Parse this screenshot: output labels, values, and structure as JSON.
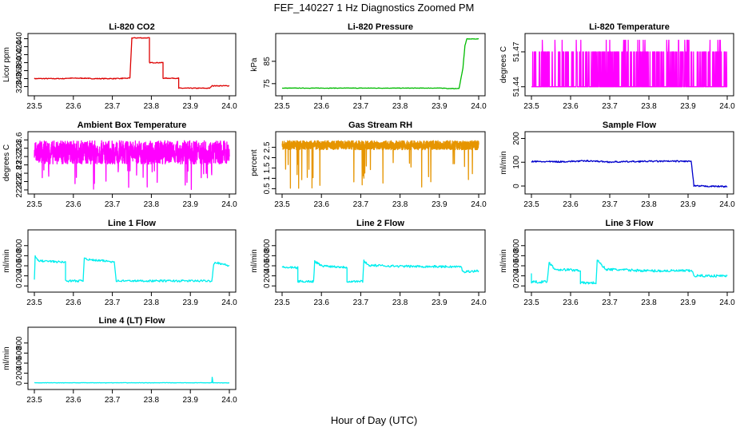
{
  "figure": {
    "title": "FEF_140227  1 Hz Diagnostics Zoomed PM",
    "xlabel": "Hour of Day (UTC)"
  },
  "chart_data": [
    {
      "type": "line",
      "title": "Li-820 CO2",
      "ylabel": "Licor ppm",
      "color": "#dd0000",
      "xlim": [
        23.5,
        24.0
      ],
      "ylim": [
        305,
        445
      ],
      "xticks": [
        "23.5",
        "23.6",
        "23.7",
        "23.8",
        "23.9",
        "24.0"
      ],
      "yticks": [
        320,
        340,
        360,
        380,
        400,
        420,
        440
      ],
      "segments": [
        [
          23.5,
          340
        ],
        [
          23.58,
          340
        ],
        [
          23.58,
          341
        ],
        [
          23.64,
          341
        ],
        [
          23.64,
          340
        ],
        [
          23.725,
          340
        ],
        [
          23.725,
          341
        ],
        [
          23.745,
          341
        ],
        [
          23.75,
          442
        ],
        [
          23.795,
          442
        ],
        [
          23.795,
          380
        ],
        [
          23.83,
          380
        ],
        [
          23.83,
          341
        ],
        [
          23.87,
          341
        ],
        [
          23.87,
          316
        ],
        [
          23.95,
          316
        ],
        [
          23.955,
          322
        ],
        [
          23.96,
          322
        ],
        [
          23.96,
          322
        ],
        [
          24.0,
          322
        ]
      ],
      "noise": 1
    },
    {
      "type": "line",
      "title": "Li-820 Pressure",
      "ylabel": "kPa",
      "color": "#00bb00",
      "xlim": [
        23.5,
        24.0
      ],
      "ylim": [
        71,
        96
      ],
      "xticks": [
        "23.5",
        "23.6",
        "23.7",
        "23.8",
        "23.9",
        "24.0"
      ],
      "yticks": [
        75,
        85
      ],
      "segments": [
        [
          23.5,
          73
        ],
        [
          23.915,
          73
        ],
        [
          23.92,
          72.8
        ],
        [
          23.95,
          72.8
        ],
        [
          23.96,
          82
        ],
        [
          23.965,
          92
        ],
        [
          23.97,
          95
        ],
        [
          24.0,
          95
        ]
      ],
      "noise": 0.1
    },
    {
      "type": "spikes",
      "title": "Li-820 Temperature",
      "ylabel": "degrees C",
      "color": "#ff00ff",
      "xlim": [
        23.5,
        24.0
      ],
      "ylim": [
        51.435,
        51.483
      ],
      "xticks": [
        "23.5",
        "23.6",
        "23.7",
        "23.8",
        "23.9",
        "24.0"
      ],
      "yticks": [
        51.44,
        51.47
      ],
      "levels": [
        51.44,
        51.47,
        51.48
      ]
    },
    {
      "type": "noisy",
      "title": "Ambient Box Temperature",
      "ylabel": "degrees C",
      "color": "#ff00ff",
      "xlim": [
        23.5,
        24.0
      ],
      "ylim": [
        22.38,
        23.72
      ],
      "xticks": [
        "23.5",
        "23.6",
        "23.7",
        "23.8",
        "23.9",
        "24.0"
      ],
      "yticks": [
        22.4,
        22.6,
        22.8,
        23.0,
        23.2,
        23.4,
        23.6
      ],
      "center": 23.3,
      "spread": 0.28,
      "low_spikes": 22.4
    },
    {
      "type": "noisy",
      "title": "Gas Stream RH",
      "ylabel": "percent",
      "color": "#e69500",
      "xlim": [
        23.5,
        24.0
      ],
      "ylim": [
        0.4,
        3.1
      ],
      "xticks": [
        "23.5",
        "23.6",
        "23.7",
        "23.8",
        "23.9",
        "24.0"
      ],
      "yticks": [
        0.5,
        1.0,
        1.5,
        2.0,
        2.5
      ],
      "center": 2.6,
      "spread": 0.22,
      "low_spikes": 0.5
    },
    {
      "type": "line",
      "title": "Sample Flow",
      "ylabel": "ml/min",
      "color": "#0000cc",
      "xlim": [
        23.5,
        24.0
      ],
      "ylim": [
        -20,
        215
      ],
      "xticks": [
        "23.5",
        "23.6",
        "23.7",
        "23.8",
        "23.9",
        "24.0"
      ],
      "yticks": [
        0,
        100,
        200
      ],
      "segments": [
        [
          23.5,
          103
        ],
        [
          23.57,
          102
        ],
        [
          23.65,
          106
        ],
        [
          23.7,
          101
        ],
        [
          23.8,
          104
        ],
        [
          23.908,
          104
        ],
        [
          23.915,
          0
        ],
        [
          24.0,
          -2
        ]
      ],
      "noise": 3
    },
    {
      "type": "line",
      "title": "Line 1 Flow",
      "ylabel": "ml/min",
      "color": "#00eeee",
      "xlim": [
        23.5,
        24.0
      ],
      "ylim": [
        -60,
        1050
      ],
      "xticks": [
        "23.5",
        "23.6",
        "23.7",
        "23.8",
        "23.9",
        "24.0"
      ],
      "yticks": [
        0,
        200,
        400,
        600,
        800
      ],
      "segments": [
        [
          23.5,
          130
        ],
        [
          23.502,
          580
        ],
        [
          23.51,
          500
        ],
        [
          23.58,
          470
        ],
        [
          23.58,
          100
        ],
        [
          23.625,
          100
        ],
        [
          23.628,
          560
        ],
        [
          23.64,
          520
        ],
        [
          23.705,
          480
        ],
        [
          23.71,
          100
        ],
        [
          23.955,
          100
        ],
        [
          23.96,
          440
        ],
        [
          23.965,
          470
        ],
        [
          24.0,
          400
        ]
      ],
      "noise": 20
    },
    {
      "type": "line",
      "title": "Line 2 Flow",
      "ylabel": "ml/min",
      "color": "#00eeee",
      "xlim": [
        23.5,
        24.0
      ],
      "ylim": [
        -60,
        1050
      ],
      "xticks": [
        "23.5",
        "23.6",
        "23.7",
        "23.8",
        "23.9",
        "24.0"
      ],
      "yticks": [
        0,
        200,
        400,
        600,
        800
      ],
      "segments": [
        [
          23.5,
          370
        ],
        [
          23.54,
          360
        ],
        [
          23.54,
          90
        ],
        [
          23.58,
          90
        ],
        [
          23.583,
          490
        ],
        [
          23.6,
          400
        ],
        [
          23.665,
          370
        ],
        [
          23.665,
          90
        ],
        [
          23.705,
          90
        ],
        [
          23.708,
          500
        ],
        [
          23.72,
          410
        ],
        [
          23.8,
          390
        ],
        [
          23.955,
          380
        ],
        [
          23.96,
          280
        ],
        [
          24.0,
          300
        ]
      ],
      "noise": 22
    },
    {
      "type": "line",
      "title": "Line 3 Flow",
      "ylabel": "ml/min",
      "color": "#00eeee",
      "xlim": [
        23.5,
        24.0
      ],
      "ylim": [
        -60,
        1050
      ],
      "xticks": [
        "23.5",
        "23.6",
        "23.7",
        "23.8",
        "23.9",
        "24.0"
      ],
      "yticks": [
        0,
        200,
        400,
        600,
        800
      ],
      "segments": [
        [
          23.5,
          250
        ],
        [
          23.5,
          80
        ],
        [
          23.54,
          80
        ],
        [
          23.545,
          470
        ],
        [
          23.56,
          330
        ],
        [
          23.625,
          310
        ],
        [
          23.625,
          60
        ],
        [
          23.665,
          60
        ],
        [
          23.668,
          510
        ],
        [
          23.69,
          330
        ],
        [
          23.8,
          300
        ],
        [
          23.91,
          300
        ],
        [
          23.915,
          200
        ],
        [
          24.0,
          200
        ]
      ],
      "noise": 25
    },
    {
      "type": "line",
      "title": "Line 4 (LT) Flow",
      "ylabel": "ml/min",
      "color": "#00eeee",
      "xlim": [
        23.5,
        24.0
      ],
      "ylim": [
        -60,
        1050
      ],
      "xticks": [
        "23.5",
        "23.6",
        "23.7",
        "23.8",
        "23.9",
        "24.0"
      ],
      "yticks": [
        0,
        200,
        400,
        600,
        800
      ],
      "segments": [
        [
          23.5,
          10
        ],
        [
          23.955,
          10
        ],
        [
          23.956,
          120
        ],
        [
          23.958,
          10
        ],
        [
          24.0,
          8
        ]
      ],
      "noise": 3
    }
  ]
}
